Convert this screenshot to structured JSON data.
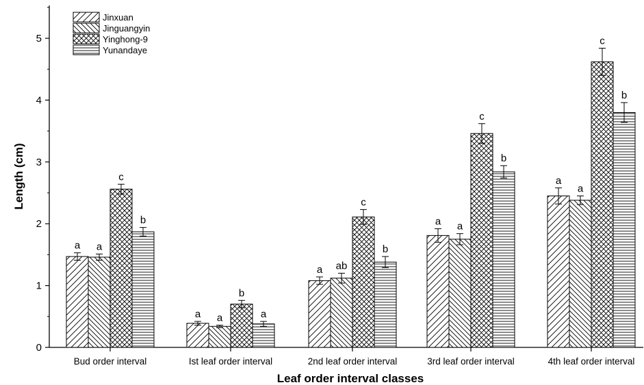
{
  "chart_data": {
    "type": "bar",
    "title": "",
    "xlabel": "Leaf order interval classes",
    "ylabel": "Length (cm)",
    "ylim": [
      0,
      5.5
    ],
    "yticks": [
      "0",
      "1",
      "2",
      "3",
      "4",
      "5"
    ],
    "categories": [
      "Bud order interval",
      "Ist leaf order interval",
      "2nd leaf order interval",
      "3rd leaf order interval",
      "4th leaf order interval"
    ],
    "legend_position": "top-left",
    "grid": false,
    "series": [
      {
        "name": "Jinxuan",
        "pattern": "diagonal-up",
        "values": [
          1.47,
          0.39,
          1.08,
          1.81,
          2.45
        ],
        "errors": [
          0.06,
          0.03,
          0.06,
          0.11,
          0.13
        ],
        "labels": [
          "a",
          "a",
          "a",
          "a",
          "a"
        ]
      },
      {
        "name": "Jinguangyin",
        "pattern": "diagonal-down",
        "values": [
          1.46,
          0.34,
          1.12,
          1.75,
          2.38
        ],
        "errors": [
          0.05,
          0.02,
          0.08,
          0.09,
          0.07
        ],
        "labels": [
          "a",
          "a",
          "ab",
          "a",
          "a"
        ]
      },
      {
        "name": "Yinghong-9",
        "pattern": "crosshatch",
        "values": [
          2.56,
          0.7,
          2.11,
          3.46,
          4.62
        ],
        "errors": [
          0.08,
          0.06,
          0.12,
          0.16,
          0.22
        ],
        "labels": [
          "c",
          "b",
          "c",
          "c",
          "c"
        ]
      },
      {
        "name": "Yunandaye",
        "pattern": "horizontal",
        "values": [
          1.87,
          0.38,
          1.38,
          2.84,
          3.8
        ],
        "errors": [
          0.07,
          0.04,
          0.09,
          0.1,
          0.16
        ],
        "labels": [
          "b",
          "a",
          "b",
          "b",
          "b"
        ]
      }
    ]
  }
}
